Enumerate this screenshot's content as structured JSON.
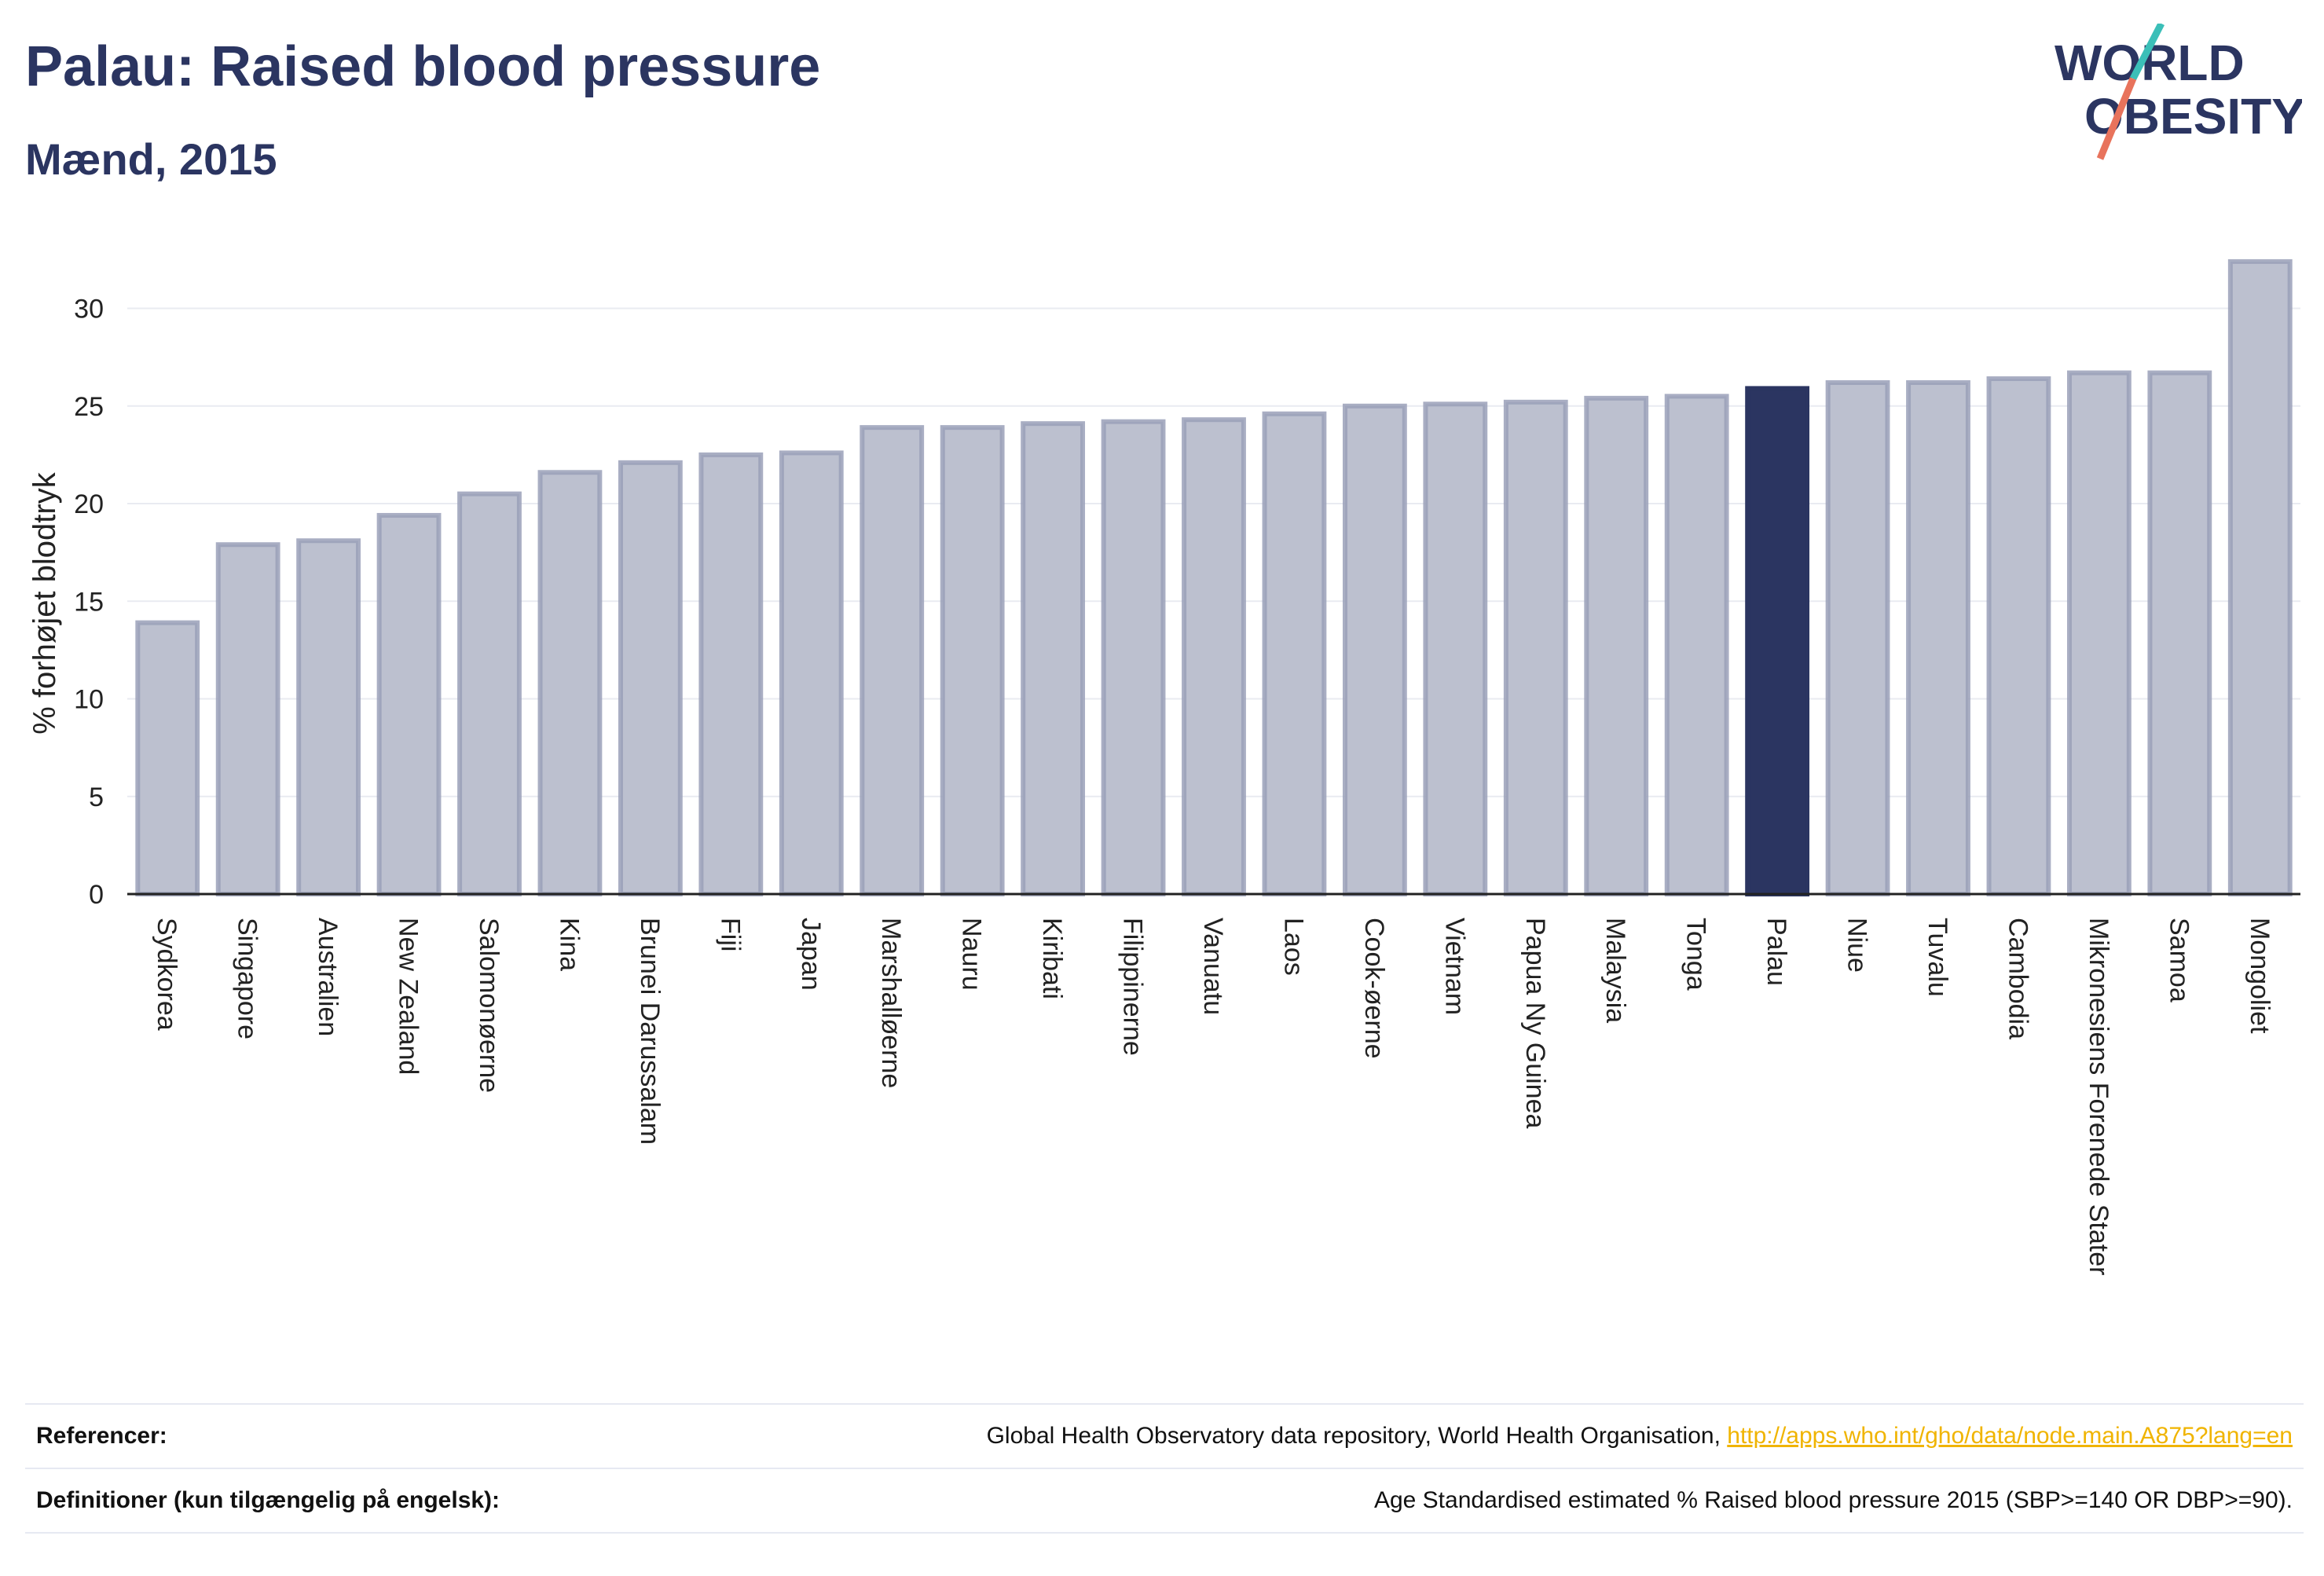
{
  "header": {
    "title": "Palau: Raised blood pressure",
    "subtitle": "Mænd, 2015"
  },
  "logo": {
    "line1": "WORLD",
    "line2": "OBESITY",
    "colors": {
      "text": "#2b3561",
      "slash_top": "#3bbfb8",
      "slash_bottom": "#e8735c"
    }
  },
  "chart_data": {
    "type": "bar",
    "ylabel": "% forhøjet blodtryk",
    "ylim": [
      0,
      33
    ],
    "yticks": [
      0,
      5,
      10,
      15,
      20,
      25,
      30
    ],
    "grid": true,
    "highlight": "Palau",
    "colors": {
      "bar": "#bcc0cf",
      "bar_edge": "#9aa0b8",
      "highlight": "#2b3561",
      "grid": "#e9ebf1",
      "axis": "#222222"
    },
    "categories": [
      "Sydkorea",
      "Singapore",
      "Australien",
      "New Zealand",
      "Salomonøerne",
      "Kina",
      "Brunei Darussalam",
      "Fiji",
      "Japan",
      "Marshalløerne",
      "Nauru",
      "Kiribati",
      "Filippinerne",
      "Vanuatu",
      "Laos",
      "Cook-øerne",
      "Vietnam",
      "Papua Ny Guinea",
      "Malaysia",
      "Tonga",
      "Palau",
      "Niue",
      "Tuvalu",
      "Cambodia",
      "Mikronesiens Forenede Stater",
      "Samoa",
      "Mongoliet"
    ],
    "values": [
      13.9,
      17.9,
      18.1,
      19.4,
      20.5,
      21.6,
      22.1,
      22.5,
      22.6,
      23.9,
      23.9,
      24.1,
      24.2,
      24.3,
      24.6,
      25.0,
      25.1,
      25.2,
      25.4,
      25.5,
      25.9,
      26.2,
      26.2,
      26.4,
      26.7,
      26.7,
      32.4
    ]
  },
  "references": {
    "ref_label": "Referencer:",
    "ref_text": "Global Health Observatory data repository, World Health Organisation, ",
    "ref_link": "http://apps.who.int/gho/data/node.main.A875?lang=en",
    "def_label": "Definitioner (kun tilgængelig på engelsk):",
    "def_text": "Age Standardised estimated % Raised blood pressure 2015 (SBP>=140 OR DBP>=90)."
  }
}
